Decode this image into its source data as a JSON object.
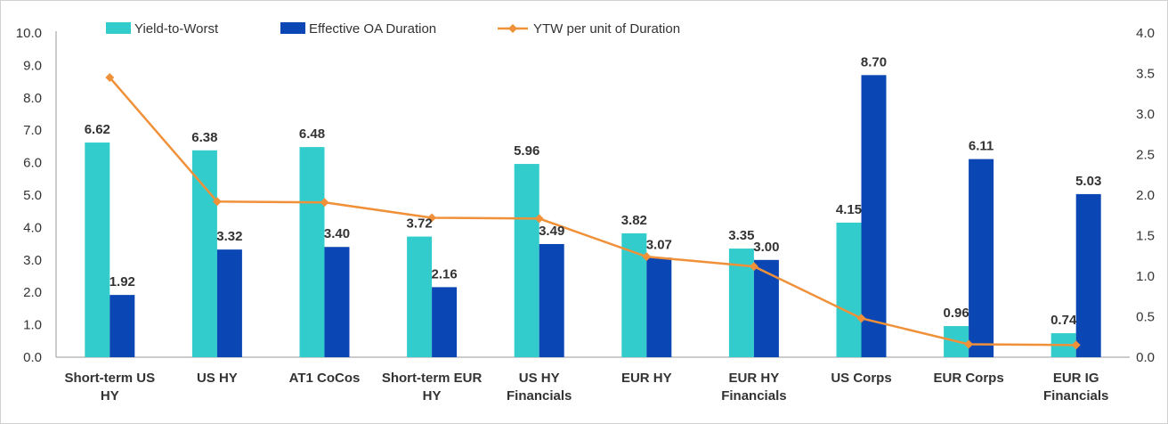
{
  "chart_data": {
    "type": "bar",
    "categories": [
      [
        "Short-term US",
        "HY"
      ],
      [
        "US HY"
      ],
      [
        "AT1 CoCos"
      ],
      [
        "Short-term EUR",
        "HY"
      ],
      [
        "US HY",
        "Financials"
      ],
      [
        "EUR HY"
      ],
      [
        "EUR HY",
        "Financials"
      ],
      [
        "US Corps"
      ],
      [
        "EUR Corps"
      ],
      [
        "EUR IG",
        "Financials"
      ]
    ],
    "series": [
      {
        "name": "Yield-to-Worst",
        "type": "bar",
        "axis": "left",
        "color": "#33CCCC",
        "values": [
          6.62,
          6.38,
          6.48,
          3.72,
          5.96,
          3.82,
          3.35,
          4.15,
          0.96,
          0.74
        ],
        "labels": [
          "6.62",
          "6.38",
          "6.48",
          "3.72",
          "5.96",
          "3.82",
          "3.35",
          "4.15",
          "0.96",
          "0.74"
        ]
      },
      {
        "name": "Effective OA Duration",
        "type": "bar",
        "axis": "left",
        "color": "#0A47B4",
        "values": [
          1.92,
          3.32,
          3.4,
          2.16,
          3.49,
          3.07,
          3.0,
          8.7,
          6.11,
          5.03
        ],
        "labels": [
          "1.92",
          "3.32",
          "3.40",
          "2.16",
          "3.49",
          "3.07",
          "3.00",
          "8.70",
          "6.11",
          "5.03"
        ]
      },
      {
        "name": "YTW per unit of Duration",
        "type": "line",
        "axis": "right",
        "color": "#F0913A",
        "values": [
          3.45,
          1.92,
          1.91,
          1.72,
          1.71,
          1.24,
          1.12,
          0.48,
          0.16,
          0.15
        ]
      }
    ],
    "y_left": {
      "min": 0,
      "max": 10,
      "ticks": [
        "0.0",
        "1.0",
        "2.0",
        "3.0",
        "4.0",
        "5.0",
        "6.0",
        "7.0",
        "8.0",
        "9.0",
        "10.0"
      ]
    },
    "y_right": {
      "min": 0,
      "max": 4,
      "ticks": [
        "0.0",
        "0.5",
        "1.0",
        "1.5",
        "2.0",
        "2.5",
        "3.0",
        "3.5",
        "4.0"
      ]
    },
    "legend_position": "top",
    "grid": false,
    "title": "",
    "xlabel": "",
    "ylabel": ""
  }
}
